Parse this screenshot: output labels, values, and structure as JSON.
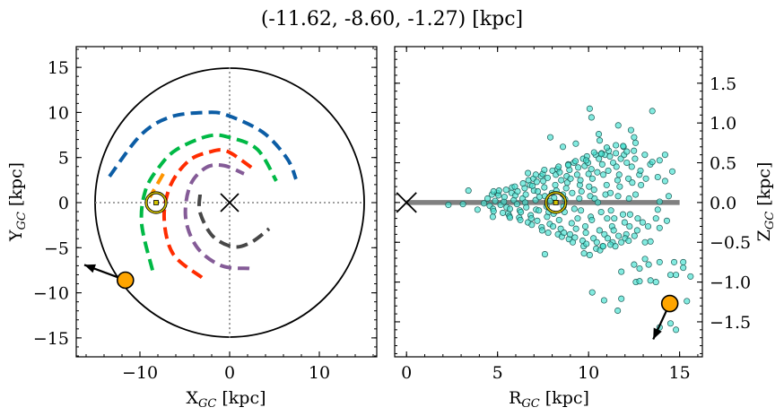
{
  "title": "(-11.62, -8.60, -1.27) [kpc]",
  "colors": {
    "arm_blue": "#0C5DA5",
    "arm_green": "#00B945",
    "arm_red": "#FF2C00",
    "arm_purple": "#845B97",
    "arm_gray": "#474747",
    "arm_orange": "#FF9500",
    "object": "#FFA500",
    "sun": "#D4C400",
    "scatter_fill": "#40E0D0",
    "scatter_edge": "#1E5A55",
    "disk_line": "#808080"
  },
  "chart_data": [
    {
      "type": "line",
      "panel": "top-down view",
      "xlabel": {
        "main": "X",
        "sub": "GC",
        "unit": " [kpc]"
      },
      "ylabel": {
        "main": "Y",
        "sub": "GC",
        "unit": " [kpc]"
      },
      "xlim": [
        -17.1,
        16.4
      ],
      "ylim": [
        -17.1,
        17.3
      ],
      "xticks": [
        -10,
        0,
        10
      ],
      "xticklabels": [
        "−10",
        "0",
        "10"
      ],
      "yticks": [
        -15,
        -10,
        -5,
        0,
        5,
        10,
        15
      ],
      "yticklabels": [
        "−15",
        "−10",
        "−5",
        "0",
        "5",
        "10",
        "15"
      ],
      "boundary_circle_radius": 15,
      "galactic_center": [
        0,
        0
      ],
      "sun": [
        -8.2,
        0
      ],
      "object": {
        "x": -11.62,
        "y": -8.6,
        "arrow_to": [
          -16.2,
          -6.9
        ]
      },
      "arms": [
        {
          "color": "arm_blue",
          "points": [
            [
              -13.4,
              2.9
            ],
            [
              -9.9,
              7.5
            ],
            [
              -6.6,
              9.5
            ],
            [
              -2.6,
              10.0
            ],
            [
              -0.3,
              9.7
            ],
            [
              3.7,
              7.8
            ],
            [
              6.4,
              4.9
            ],
            [
              7.4,
              2.6
            ]
          ]
        },
        {
          "color": "arm_green",
          "points": [
            [
              -8.6,
              -7.5
            ],
            [
              -9.8,
              -2.4
            ],
            [
              -9.4,
              1.3
            ],
            [
              -7.9,
              3.9
            ],
            [
              -5.9,
              5.9
            ],
            [
              -2.3,
              7.4
            ],
            [
              0.1,
              7.2
            ],
            [
              3.1,
              5.9
            ],
            [
              5.2,
              2.4
            ]
          ]
        },
        {
          "color": "arm_red",
          "points": [
            [
              -3.1,
              -8.3
            ],
            [
              -6.3,
              -5.7
            ],
            [
              -7.3,
              -1.7
            ],
            [
              -6.6,
              1.9
            ],
            [
              -4.6,
              4.6
            ],
            [
              -2.3,
              5.6
            ],
            [
              -0.3,
              5.7
            ],
            [
              2.7,
              3.7
            ]
          ]
        },
        {
          "color": "arm_purple",
          "points": [
            [
              2.2,
              -7.3
            ],
            [
              -0.9,
              -7.0
            ],
            [
              -3.6,
              -5.0
            ],
            [
              -4.9,
              -1.7
            ],
            [
              -4.4,
              1.9
            ],
            [
              -2.6,
              3.9
            ],
            [
              -0.6,
              4.1
            ],
            [
              1.6,
              3.2
            ]
          ]
        },
        {
          "color": "arm_gray",
          "points": [
            [
              -3.3,
              0.9
            ],
            [
              -3.3,
              -1.1
            ],
            [
              -1.9,
              -3.7
            ],
            [
              0.4,
              -4.9
            ],
            [
              2.4,
              -4.4
            ],
            [
              4.4,
              -2.9
            ]
          ]
        },
        {
          "color": "arm_orange",
          "points": [
            [
              -7.4,
              3.2
            ],
            [
              -8.9,
              0.6
            ]
          ]
        }
      ]
    },
    {
      "type": "scatter",
      "panel": "edge-on view",
      "xlabel": {
        "main": "R",
        "sub": "GC",
        "unit": " [kpc]"
      },
      "ylabel": {
        "main": "Z",
        "sub": "GC",
        "unit": " [kpc]"
      },
      "xlim": [
        -0.65,
        16.25
      ],
      "ylim": [
        -1.94,
        1.96
      ],
      "xticks": [
        0,
        5,
        10,
        15
      ],
      "xticklabels": [
        "0",
        "5",
        "10",
        "15"
      ],
      "yticks": [
        -1.5,
        -1.0,
        -0.5,
        0.0,
        0.5,
        1.0,
        1.5
      ],
      "yticklabels": [
        "−1.5",
        "−1.0",
        "−0.5",
        "0.0",
        "0.5",
        "1.0",
        "1.5"
      ],
      "disk_line": {
        "R": [
          0,
          15
        ],
        "z": 0
      },
      "galactic_center": [
        0,
        0
      ],
      "sun": [
        8.2,
        0
      ],
      "object": {
        "R": 14.46,
        "z": -1.27,
        "arrow_to": [
          13.55,
          -1.72
        ]
      },
      "cluster": [
        {
          "R": 4.6,
          "z": [
            0.05,
            -0.04,
            0.1
          ]
        },
        {
          "R": 4.9,
          "z": [
            -0.08,
            0.02,
            0.12,
            -0.11
          ]
        },
        {
          "R": 5.2,
          "z": [
            0.09,
            -0.03,
            -0.13,
            0.15
          ]
        },
        {
          "R": 5.5,
          "z": [
            0.01,
            0.16,
            -0.14,
            0.07,
            -0.06
          ]
        },
        {
          "R": 5.8,
          "z": [
            -0.17,
            0.12,
            0.03,
            -0.08,
            0.19
          ]
        },
        {
          "R": 6.1,
          "z": [
            0.2,
            -0.02,
            -0.19,
            0.09,
            0.14,
            -0.1
          ]
        },
        {
          "R": 6.4,
          "z": [
            -0.22,
            0.05,
            0.18,
            -0.12,
            0.24,
            0.0
          ]
        },
        {
          "R": 6.7,
          "z": [
            0.1,
            -0.25,
            0.22,
            -0.06,
            0.28,
            -0.16
          ]
        },
        {
          "R": 7.0,
          "z": [
            -0.2,
            0.3,
            0.03,
            -0.28,
            0.15,
            -0.09,
            0.21
          ]
        },
        {
          "R": 7.3,
          "z": [
            0.26,
            -0.1,
            0.33,
            -0.23,
            0.07,
            -0.31,
            0.14
          ]
        },
        {
          "R": 7.6,
          "z": [
            -0.35,
            0.19,
            -0.05,
            0.36,
            0.08,
            -0.18,
            0.27
          ]
        },
        {
          "R": 7.9,
          "z": [
            0.31,
            -0.27,
            0.12,
            -0.38,
            0.02,
            0.4,
            -0.12
          ]
        },
        {
          "R": 8.2,
          "z": [
            -0.3,
            0.22,
            0.42,
            -0.14,
            0.35,
            -0.4,
            0.06,
            0.15
          ]
        },
        {
          "R": 8.5,
          "z": [
            0.45,
            -0.33,
            0.1,
            -0.22,
            0.28,
            -0.05,
            0.38,
            -0.43
          ]
        },
        {
          "R": 8.8,
          "z": [
            -0.38,
            0.18,
            0.48,
            -0.12,
            0.33,
            -0.46,
            0.04,
            0.25
          ]
        },
        {
          "R": 9.1,
          "z": [
            0.41,
            -0.26,
            0.5,
            -0.4,
            0.12,
            -0.08,
            0.3,
            -0.5
          ]
        },
        {
          "R": 9.4,
          "z": [
            -0.44,
            0.35,
            0.05,
            0.52,
            -0.2,
            0.22,
            -0.33,
            0.44
          ]
        },
        {
          "R": 9.7,
          "z": [
            0.28,
            -0.48,
            0.46,
            -0.1,
            0.55,
            -0.3,
            0.14,
            -0.55
          ]
        },
        {
          "R": 10.0,
          "z": [
            -0.38,
            0.5,
            0.08,
            -0.52,
            0.36,
            -0.18,
            0.58,
            0.2
          ]
        },
        {
          "R": 10.3,
          "z": [
            0.42,
            -0.45,
            0.6,
            -0.22,
            0.16,
            -0.58,
            0.3,
            0.05
          ]
        },
        {
          "R": 10.6,
          "z": [
            -0.5,
            0.55,
            -0.12,
            0.38,
            -0.35,
            0.62,
            0.0,
            -0.6
          ]
        },
        {
          "R": 10.9,
          "z": [
            0.48,
            -0.4,
            0.22,
            -0.55,
            0.6,
            -0.2,
            0.35,
            0.1
          ]
        },
        {
          "R": 11.2,
          "z": [
            -0.45,
            0.58,
            -0.3,
            0.4,
            0.12,
            -0.5,
            0.65,
            -0.1
          ]
        },
        {
          "R": 11.5,
          "z": [
            0.5,
            -0.55,
            0.28,
            -0.35,
            0.62,
            0.08,
            -0.2,
            0.45
          ]
        },
        {
          "R": 11.8,
          "z": [
            -0.42,
            0.55,
            -0.15,
            0.35,
            -0.5,
            0.7,
            0.2
          ]
        },
        {
          "R": 12.1,
          "z": [
            0.6,
            -0.4,
            0.3,
            -0.25,
            0.5,
            0.05,
            -0.45
          ]
        },
        {
          "R": 12.4,
          "z": [
            -0.3,
            0.45,
            0.65,
            -0.15,
            0.25,
            -0.42
          ]
        },
        {
          "R": 12.7,
          "z": [
            0.55,
            -0.35,
            0.35,
            0.1,
            -0.2
          ]
        },
        {
          "R": 13.0,
          "z": [
            0.4,
            -0.25,
            0.6,
            0.22
          ]
        },
        {
          "R": 13.3,
          "z": [
            0.3,
            -0.3,
            0.48
          ]
        }
      ],
      "points": [
        [
          10.06,
          1.18
        ],
        [
          10.16,
          1.07
        ],
        [
          13.5,
          1.15
        ],
        [
          11.63,
          0.97
        ],
        [
          12.33,
          0.91
        ],
        [
          7.9,
          0.82
        ],
        [
          10.56,
          0.86
        ],
        [
          10.61,
          0.78
        ],
        [
          9.3,
          0.74
        ],
        [
          8.59,
          0.7
        ],
        [
          12.5,
          0.82
        ],
        [
          12.58,
          0.75
        ],
        [
          11.0,
          0.69
        ],
        [
          11.5,
          0.72
        ],
        [
          11.9,
          0.71
        ],
        [
          10.3,
          0.63
        ],
        [
          10.7,
          0.61
        ],
        [
          12.1,
          0.64
        ],
        [
          14.2,
          0.6
        ],
        [
          13.9,
          0.53
        ],
        [
          13.5,
          0.51
        ],
        [
          9.87,
          0.53
        ],
        [
          8.88,
          0.47
        ],
        [
          14.6,
          0.39
        ],
        [
          13.8,
          0.32
        ],
        [
          14.2,
          0.27
        ],
        [
          6.67,
          0.37
        ],
        [
          7.1,
          0.35
        ],
        [
          7.57,
          0.41
        ],
        [
          14.4,
          0.08
        ],
        [
          13.9,
          0.01
        ],
        [
          13.8,
          -0.09
        ],
        [
          14.3,
          -0.23
        ],
        [
          13.9,
          -0.32
        ],
        [
          13.7,
          -0.2
        ],
        [
          13.4,
          -0.49
        ],
        [
          13.1,
          -0.5
        ],
        [
          12.2,
          -0.48
        ],
        [
          11.2,
          -0.53
        ],
        [
          10.8,
          -0.55
        ],
        [
          7.6,
          -0.65
        ],
        [
          9.75,
          -0.64
        ],
        [
          10.06,
          -0.66
        ],
        [
          11.8,
          -0.87
        ],
        [
          12.5,
          -0.78
        ],
        [
          12.8,
          -0.83
        ],
        [
          13.1,
          -0.71
        ],
        [
          13.3,
          -0.78
        ],
        [
          13.9,
          -0.75
        ],
        [
          14.7,
          -0.75
        ],
        [
          15.2,
          -0.75
        ],
        [
          15.2,
          -0.82
        ],
        [
          15.6,
          -0.93
        ],
        [
          14.5,
          -0.91
        ],
        [
          14.8,
          -0.91
        ],
        [
          12.6,
          -1.0
        ],
        [
          12.8,
          -0.99
        ],
        [
          13.4,
          -0.98
        ],
        [
          13.7,
          -1.0
        ],
        [
          10.2,
          -1.13
        ],
        [
          10.85,
          -1.23
        ],
        [
          11.8,
          -1.21
        ],
        [
          11.6,
          -1.36
        ],
        [
          15.4,
          -1.24
        ],
        [
          14.5,
          -1.52
        ],
        [
          14.8,
          -1.6
        ],
        [
          13.9,
          -1.57
        ],
        [
          2.3,
          -0.03
        ],
        [
          3.1,
          -0.02
        ],
        [
          3.4,
          0.15
        ],
        [
          3.9,
          -0.09
        ],
        [
          4.25,
          -0.01
        ],
        [
          4.78,
          0.14
        ],
        [
          4.74,
          -0.18
        ],
        [
          5.68,
          -0.19
        ]
      ]
    }
  ]
}
